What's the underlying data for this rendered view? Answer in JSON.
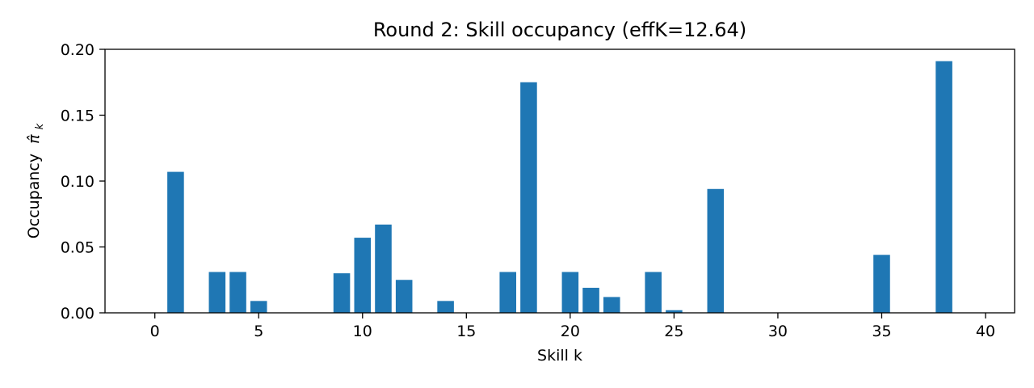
{
  "chart_data": {
    "type": "bar",
    "title": "Round 2: Skill occupancy (effK=12.64)",
    "xlabel": "Skill k",
    "ylabel_text": "Occupancy",
    "ylabel_symbol": "π̂",
    "ylabel_subscript": "k",
    "xlim": [
      -2.4,
      41.4
    ],
    "ylim": [
      0,
      0.2
    ],
    "xticks": [
      0,
      5,
      10,
      15,
      20,
      25,
      30,
      35,
      40
    ],
    "xtick_labels": [
      "0",
      "5",
      "10",
      "15",
      "20",
      "25",
      "30",
      "35",
      "40"
    ],
    "yticks": [
      0,
      0.05,
      0.1,
      0.15,
      0.2
    ],
    "ytick_labels": [
      "0.00",
      "0.05",
      "0.10",
      "0.15",
      "0.20"
    ],
    "bar_width": 0.8,
    "grid": false,
    "color": "#1f77b4",
    "bars": [
      {
        "x": 1,
        "value": 0.107
      },
      {
        "x": 3,
        "value": 0.031
      },
      {
        "x": 4,
        "value": 0.031
      },
      {
        "x": 5,
        "value": 0.009
      },
      {
        "x": 9,
        "value": 0.03
      },
      {
        "x": 10,
        "value": 0.057
      },
      {
        "x": 11,
        "value": 0.067
      },
      {
        "x": 12,
        "value": 0.025
      },
      {
        "x": 14,
        "value": 0.009
      },
      {
        "x": 17,
        "value": 0.031
      },
      {
        "x": 18,
        "value": 0.175
      },
      {
        "x": 20,
        "value": 0.031
      },
      {
        "x": 21,
        "value": 0.019
      },
      {
        "x": 22,
        "value": 0.012
      },
      {
        "x": 24,
        "value": 0.031
      },
      {
        "x": 25,
        "value": 0.002
      },
      {
        "x": 27,
        "value": 0.094
      },
      {
        "x": 35,
        "value": 0.044
      },
      {
        "x": 38,
        "value": 0.191
      }
    ]
  }
}
